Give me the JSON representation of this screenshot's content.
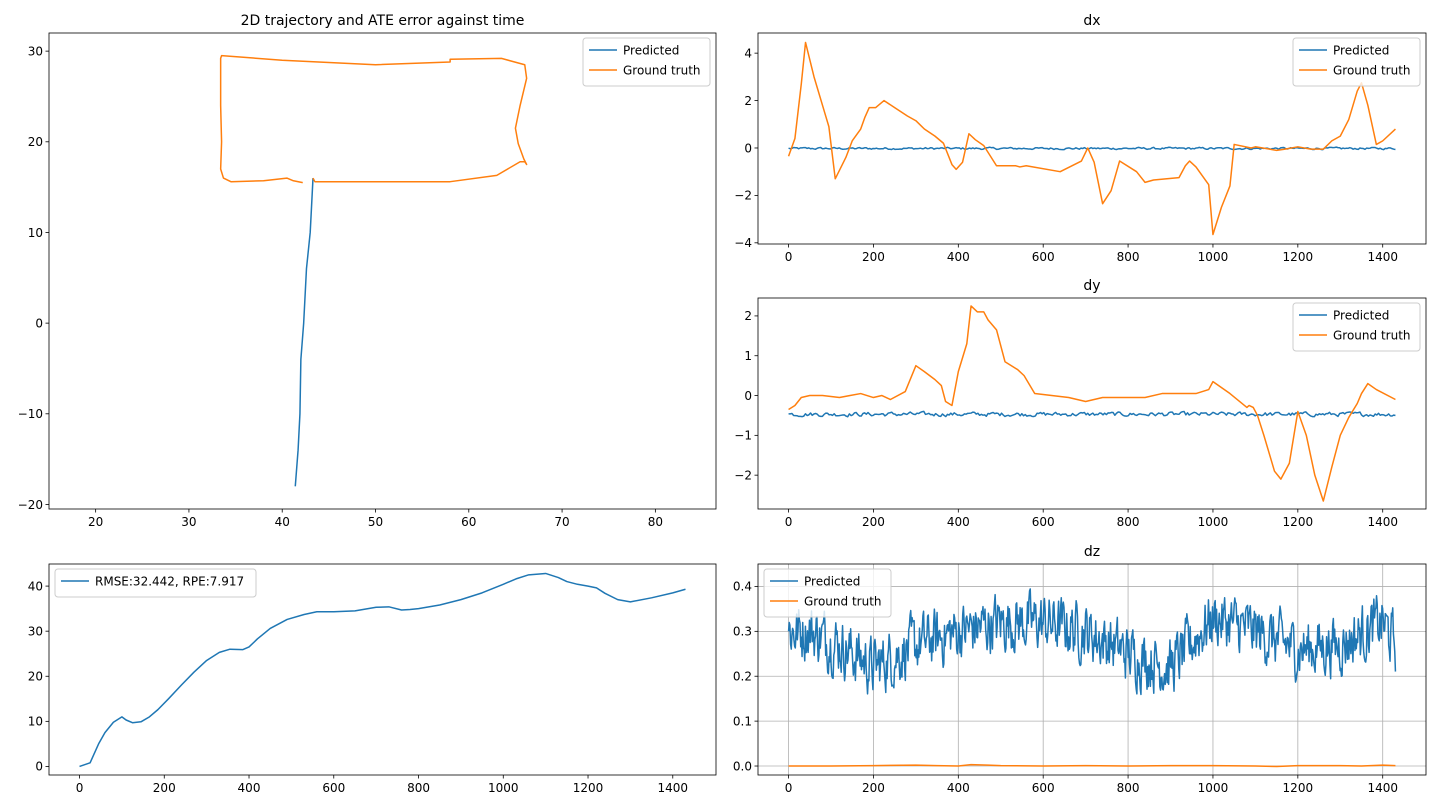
{
  "colors": {
    "predicted": "#1f77b4",
    "ground_truth": "#ff7f0e"
  },
  "chart_data": [
    {
      "id": "traj",
      "type": "line",
      "title": "2D trajectory and ATE error against time",
      "xlim": [
        15,
        86.5
      ],
      "ylim": [
        -20.5,
        32
      ],
      "xticks": [
        20,
        30,
        40,
        50,
        60,
        70,
        80
      ],
      "yticks": [
        -20,
        -10,
        0,
        10,
        20,
        30
      ],
      "grid": false,
      "legend": "top-right",
      "series": [
        {
          "name": "Predicted",
          "color": "#1f77b4",
          "x": [
            41.4,
            41.7,
            41.9,
            42.0,
            42.3,
            42.5,
            42.6,
            42.8,
            43.0,
            43.1,
            43.2,
            43.3
          ],
          "y": [
            -18.0,
            -14.0,
            -10.0,
            -4.0,
            0.0,
            4.0,
            6.0,
            8.0,
            10.0,
            12.0,
            14.0,
            16.0
          ]
        },
        {
          "name": "Ground truth",
          "color": "#ff7f0e",
          "x": [
            43.3,
            43.5,
            52,
            58,
            63,
            65.5,
            66.0,
            66.2,
            65.9,
            65.3,
            65.0,
            65.5,
            66.2,
            66.0,
            63.5,
            58,
            58,
            50,
            40,
            33.5,
            33.4,
            33.4,
            33.5,
            33.4,
            33.7,
            34.5,
            38,
            40.5,
            41.2,
            42.2
          ],
          "y": [
            16.0,
            15.6,
            15.6,
            15.6,
            16.3,
            17.8,
            17.8,
            17.5,
            18.1,
            19.8,
            21.5,
            24.0,
            27.0,
            28.5,
            29.2,
            29.1,
            28.8,
            28.5,
            29.0,
            29.5,
            29.2,
            24.0,
            20.0,
            17.0,
            16.0,
            15.6,
            15.7,
            16.0,
            15.7,
            15.5
          ]
        }
      ]
    },
    {
      "id": "ate",
      "type": "line",
      "title": "",
      "xlim": [
        -72,
        1502
      ],
      "ylim": [
        -1.9,
        44.9
      ],
      "xticks": [
        0,
        200,
        400,
        600,
        800,
        1000,
        1200,
        1400
      ],
      "yticks": [
        0,
        10,
        20,
        30,
        40
      ],
      "grid": false,
      "legend": "top-left",
      "series": [
        {
          "name": "RMSE:32.442, RPE:7.917",
          "color": "#1f77b4",
          "x": [
            0,
            25,
            45,
            60,
            80,
            100,
            110,
            125,
            145,
            165,
            185,
            210,
            240,
            270,
            300,
            330,
            355,
            385,
            400,
            420,
            450,
            490,
            530,
            560,
            600,
            650,
            700,
            730,
            760,
            780,
            800,
            850,
            900,
            950,
            1000,
            1030,
            1060,
            1100,
            1130,
            1150,
            1175,
            1200,
            1220,
            1240,
            1270,
            1300,
            1350,
            1400,
            1430
          ],
          "y": [
            0,
            0.8,
            5.0,
            7.5,
            9.8,
            11.0,
            10.3,
            9.7,
            9.9,
            11.0,
            12.6,
            15.0,
            18.0,
            20.9,
            23.5,
            25.3,
            26.0,
            25.9,
            26.5,
            28.3,
            30.6,
            32.6,
            33.7,
            34.3,
            34.3,
            34.5,
            35.3,
            35.4,
            34.7,
            34.8,
            35.0,
            35.8,
            37.0,
            38.5,
            40.4,
            41.6,
            42.5,
            42.8,
            41.9,
            41.0,
            40.4,
            40.0,
            39.6,
            38.4,
            37.0,
            36.5,
            37.4,
            38.5,
            39.3
          ]
        }
      ]
    },
    {
      "id": "dx",
      "type": "line",
      "title": "dx",
      "xlim": [
        -72,
        1502
      ],
      "ylim": [
        -4.05,
        4.85
      ],
      "xticks": [
        0,
        200,
        400,
        600,
        800,
        1000,
        1200,
        1400
      ],
      "yticks": [
        -4,
        -2,
        0,
        2,
        4
      ],
      "grid": false,
      "legend": "top-right",
      "series": [
        {
          "name": "Predicted",
          "color": "#1f77b4",
          "noise": {
            "mean": -0.02,
            "amp": 0.05,
            "n": 360
          }
        },
        {
          "name": "Ground truth",
          "color": "#ff7f0e",
          "x": [
            0,
            15,
            30,
            40,
            60,
            85,
            95,
            110,
            135,
            150,
            170,
            180,
            190,
            205,
            225,
            250,
            280,
            300,
            320,
            345,
            365,
            385,
            395,
            410,
            425,
            440,
            460,
            490,
            535,
            545,
            560,
            640,
            690,
            705,
            720,
            740,
            760,
            780,
            820,
            840,
            860,
            920,
            935,
            945,
            960,
            990,
            1000,
            1020,
            1040,
            1050,
            1090,
            1100,
            1150,
            1170,
            1200,
            1230,
            1260,
            1280,
            1300,
            1320,
            1340,
            1350,
            1365,
            1385,
            1400,
            1430
          ],
          "y": [
            -0.35,
            0.4,
            2.7,
            4.45,
            3.0,
            1.5,
            0.9,
            -1.3,
            -0.4,
            0.3,
            0.8,
            1.3,
            1.7,
            1.7,
            2.0,
            1.7,
            1.35,
            1.15,
            0.8,
            0.5,
            0.2,
            -0.7,
            -0.9,
            -0.6,
            0.6,
            0.35,
            0.1,
            -0.75,
            -0.75,
            -0.8,
            -0.75,
            -1.0,
            -0.55,
            0.0,
            -0.6,
            -2.35,
            -1.8,
            -0.55,
            -1.0,
            -1.45,
            -1.35,
            -1.25,
            -0.75,
            -0.55,
            -0.8,
            -1.55,
            -3.65,
            -2.5,
            -1.6,
            0.15,
            0.0,
            0.05,
            -0.1,
            -0.05,
            0.05,
            -0.05,
            -0.05,
            0.3,
            0.5,
            1.2,
            2.4,
            2.75,
            1.8,
            0.15,
            0.3,
            0.8
          ]
        }
      ]
    },
    {
      "id": "dy",
      "type": "line",
      "title": "dy",
      "xlim": [
        -72,
        1502
      ],
      "ylim": [
        -2.85,
        2.45
      ],
      "xticks": [
        0,
        200,
        400,
        600,
        800,
        1000,
        1200,
        1400
      ],
      "yticks": [
        -2,
        -1,
        0,
        1,
        2
      ],
      "grid": false,
      "legend": "top-right",
      "series": [
        {
          "name": "Predicted",
          "color": "#1f77b4",
          "noise": {
            "mean": -0.47,
            "amp": 0.06,
            "n": 360
          }
        },
        {
          "name": "Ground truth",
          "color": "#ff7f0e",
          "x": [
            0,
            15,
            30,
            50,
            80,
            120,
            145,
            170,
            185,
            200,
            220,
            240,
            275,
            300,
            320,
            345,
            360,
            370,
            385,
            400,
            420,
            430,
            445,
            460,
            470,
            490,
            510,
            540,
            555,
            580,
            620,
            660,
            700,
            740,
            800,
            840,
            880,
            900,
            920,
            960,
            990,
            1000,
            1040,
            1080,
            1085,
            1095,
            1105,
            1120,
            1145,
            1160,
            1180,
            1200,
            1220,
            1240,
            1260,
            1280,
            1300,
            1320,
            1340,
            1350,
            1365,
            1385,
            1430
          ],
          "y": [
            -0.35,
            -0.25,
            -0.05,
            0.0,
            0.0,
            -0.05,
            0.0,
            0.05,
            0.0,
            -0.05,
            0.0,
            -0.1,
            0.1,
            0.75,
            0.6,
            0.4,
            0.25,
            -0.15,
            -0.25,
            0.6,
            1.3,
            2.25,
            2.1,
            2.1,
            1.9,
            1.65,
            0.85,
            0.65,
            0.5,
            0.05,
            0.0,
            -0.05,
            -0.15,
            -0.05,
            -0.05,
            -0.05,
            0.05,
            0.05,
            0.05,
            0.05,
            0.15,
            0.35,
            0.05,
            -0.3,
            -0.25,
            -0.3,
            -0.5,
            -1.0,
            -1.9,
            -2.1,
            -1.7,
            -0.4,
            -1.0,
            -2.0,
            -2.65,
            -1.8,
            -1.0,
            -0.55,
            -0.2,
            0.05,
            0.3,
            0.15,
            -0.1
          ]
        }
      ]
    },
    {
      "id": "dz",
      "type": "line",
      "title": "dz",
      "xlim": [
        -72,
        1502
      ],
      "ylim": [
        -0.02,
        0.45
      ],
      "xticks": [
        0,
        200,
        400,
        600,
        800,
        1000,
        1200,
        1400
      ],
      "yticks": [
        0.0,
        0.1,
        0.2,
        0.3,
        0.4
      ],
      "grid": true,
      "legend": "top-left",
      "series": [
        {
          "name": "Predicted",
          "color": "#1f77b4",
          "noise": {
            "amp": 0.07,
            "n": 900,
            "baseline_x": [
              0,
              50,
              120,
              200,
              300,
              400,
              500,
              600,
              700,
              800,
              900,
              1000,
              1100,
              1200,
              1300,
              1400,
              1430
            ],
            "baseline_y": [
              0.3,
              0.3,
              0.27,
              0.22,
              0.27,
              0.3,
              0.32,
              0.32,
              0.3,
              0.25,
              0.22,
              0.33,
              0.3,
              0.26,
              0.27,
              0.32,
              0.27
            ]
          }
        },
        {
          "name": "Ground truth",
          "color": "#ff7f0e",
          "x": [
            0,
            100,
            200,
            300,
            350,
            400,
            430,
            470,
            500,
            600,
            700,
            800,
            900,
            1000,
            1100,
            1150,
            1200,
            1300,
            1350,
            1400,
            1430
          ],
          "y": [
            0.0,
            0.0,
            0.001,
            0.002,
            0.001,
            0.0,
            0.003,
            0.002,
            0.001,
            0.0,
            0.001,
            0.0,
            0.001,
            0.001,
            0.0,
            -0.001,
            0.001,
            0.001,
            0.0,
            0.002,
            0.001
          ]
        }
      ]
    }
  ]
}
